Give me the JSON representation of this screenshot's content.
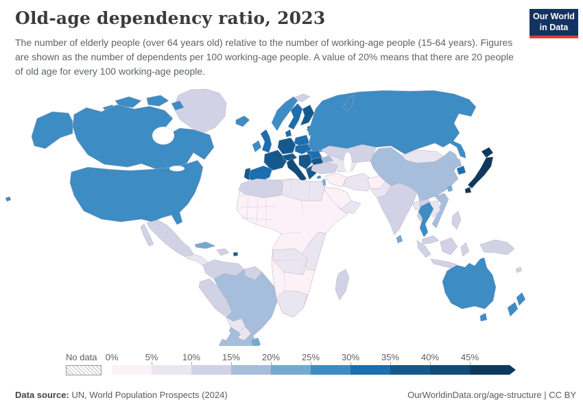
{
  "header": {
    "title": "Old-age dependency ratio, 2023",
    "subtitle": "The number of elderly people (over 64 years old) relative to the number of working-age people (15-64 years). Figures are shown as the number of dependents per 100 working-age people. A value of 20% means that there are 20 people of old age for every 100 working-age people.",
    "logo_line1": "Our World",
    "logo_line2": "in Data",
    "logo_bg": "#153360",
    "logo_accent": "#dc3e31"
  },
  "chart_data": {
    "type": "choropleth-map",
    "title": "Old-age dependency ratio, 2023",
    "year": 2023,
    "unit": "%",
    "legend": {
      "no_data_label": "No data",
      "tick_labels": [
        "0%",
        "5%",
        "10%",
        "15%",
        "20%",
        "25%",
        "30%",
        "35%",
        "40%",
        "45%"
      ],
      "bins": [
        "0-5%",
        "5-10%",
        "10-15%",
        "15-20%",
        "20-25%",
        "25-30%",
        "30-35%",
        "35-40%",
        "40-45%",
        "45%+"
      ],
      "open_ended": true
    },
    "palette": [
      "#fcf1f7",
      "#eae6f1",
      "#d2d2e6",
      "#a6bedc",
      "#74aad0",
      "#3d8cc4",
      "#1b6fae",
      "#15598c",
      "#114b76",
      "#0d3a5c"
    ],
    "regions": {
      "united-states": 5,
      "canada": 5,
      "greenland": 2,
      "mexico": 2,
      "central-america": 1,
      "cuba": 4,
      "hispaniola": 2,
      "puerto-rico": 7,
      "colombia-venezuela": 2,
      "guyanas": 2,
      "peru-ecuador": 2,
      "brazil": 3,
      "bolivia": 1,
      "paraguay": 1,
      "argentina": 3,
      "chile": 3,
      "uruguay": 4,
      "iceland": 5,
      "ireland": 5,
      "united-kingdom": 6,
      "norway": 5,
      "sweden": 6,
      "finland": 7,
      "denmark": 6,
      "baltics": 7,
      "germany": 7,
      "france": 7,
      "alpine-states": 7,
      "spain": 6,
      "portugal": 7,
      "italy": 8,
      "poland": 6,
      "czechia-hungary": 6,
      "belarus": 5,
      "ukraine": 5,
      "romania": 6,
      "balkans": 7,
      "bulgaria": 7,
      "greece": 7,
      "russia": 5,
      "svalbard": 2,
      "kazakhstan": 2,
      "central-asia": 1,
      "caucasus": 3,
      "turkey": 2,
      "syria-iraq": 0,
      "israel": 4,
      "cyprus": 5,
      "iran": 1,
      "saudi-arabia": 0,
      "yemen-oman": 1,
      "afghanistan": 0,
      "pakistan": 1,
      "india": 2,
      "bangladesh": 1,
      "myanmar": 2,
      "china": 3,
      "mongolia": 1,
      "north-korea": 3,
      "south-korea": 6,
      "japan": 9,
      "taiwan": 4,
      "vietnam": 3,
      "laos-cambodia": 1,
      "thailand": 5,
      "malaysia": 2,
      "philippines": 2,
      "indonesia": 2,
      "new-guinea": 2,
      "australia": 5,
      "new-zealand": 5,
      "sri-lanka": 4,
      "madagascar": 2,
      "new-caledonia": 2,
      "africa": 0,
      "north-africa-west": 2,
      "libya-egypt": 1,
      "east-africa": 1,
      "zambia-angola": 1,
      "southern-africa": 1
    }
  },
  "footer": {
    "source_label": "Data source:",
    "source_value": "UN, World Population Prospects (2024)",
    "credit": "OurWorldinData.org/age-structure | CC BY"
  }
}
